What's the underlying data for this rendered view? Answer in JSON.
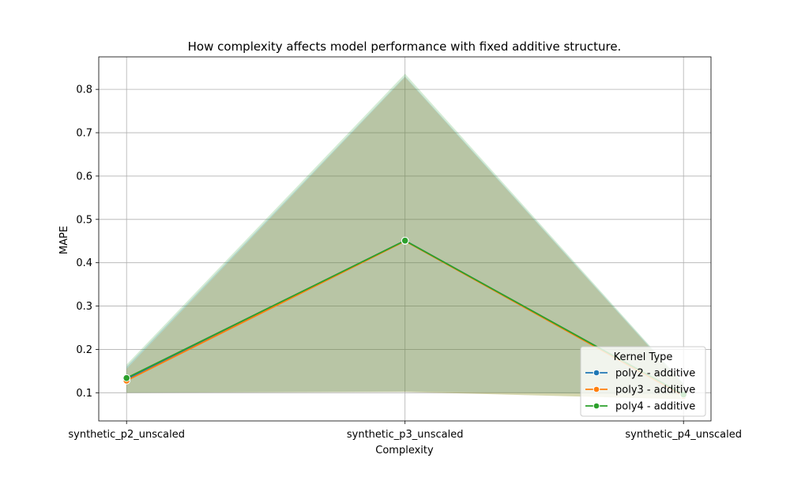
{
  "chart_data": {
    "type": "line",
    "title": "How complexity affects model performance with fixed additive structure.",
    "xlabel": "Complexity",
    "ylabel": "MAPE",
    "categories": [
      "synthetic_p2_unscaled",
      "synthetic_p3_unscaled",
      "synthetic_p4_unscaled"
    ],
    "ylim": [
      0.035,
      0.875
    ],
    "yticks": [
      "0.1",
      "0.2",
      "0.3",
      "0.4",
      "0.5",
      "0.6",
      "0.7",
      "0.8"
    ],
    "grid": true,
    "legend": {
      "title": "Kernel Type",
      "position": "lower-right"
    },
    "series": [
      {
        "name": "poly2 - additive",
        "color": "#1f77b4",
        "values": [
          0.131,
          0.451,
          0.095
        ],
        "band_low": [
          0.1,
          0.103,
          0.095
        ],
        "band_high": [
          0.16,
          0.83,
          0.12
        ]
      },
      {
        "name": "poly3 - additive",
        "color": "#ff7f0e",
        "values": [
          0.128,
          0.45,
          0.093
        ],
        "band_low": [
          0.1,
          0.102,
          0.085
        ],
        "band_high": [
          0.155,
          0.828,
          0.118
        ]
      },
      {
        "name": "poly4 - additive",
        "color": "#2ca02c",
        "values": [
          0.134,
          0.451,
          0.096
        ],
        "band_low": [
          0.1,
          0.102,
          0.085
        ],
        "band_high": [
          0.165,
          0.836,
          0.122
        ]
      }
    ]
  }
}
